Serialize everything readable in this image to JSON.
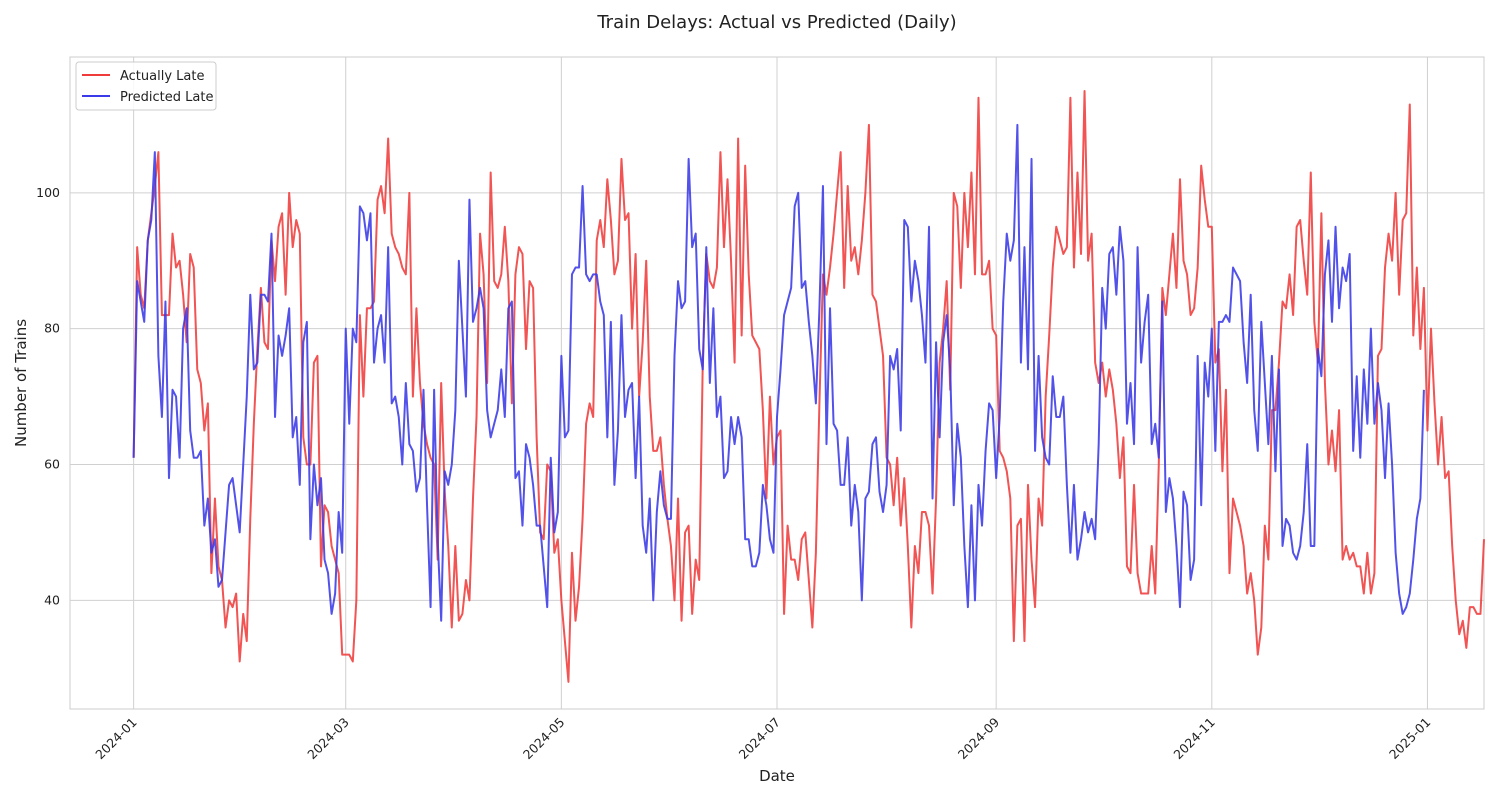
{
  "chart_data": {
    "type": "line",
    "title": "Train Delays: Actual vs Predicted (Daily)",
    "xlabel": "Date",
    "ylabel": "Number of Trains",
    "x_start": "2024-01-01",
    "x_end": "2024-12-31",
    "xlim": [
      "2023-12-14",
      "2025-01-17"
    ],
    "ylim": [
      24,
      120
    ],
    "x_ticks": [
      "2024-01",
      "2024-03",
      "2024-05",
      "2024-07",
      "2024-09",
      "2024-11",
      "2025-01"
    ],
    "y_ticks": [
      40,
      60,
      80,
      100
    ],
    "grid": true,
    "legend_position": "top-left",
    "series": [
      {
        "name": "Actually Late",
        "color": "#f03b3b",
        "values": [
          61,
          92,
          85,
          83,
          93,
          97,
          101,
          106,
          82,
          82,
          82,
          94,
          89,
          90,
          85,
          78,
          91,
          89,
          74,
          72,
          65,
          69,
          44,
          55,
          45,
          43,
          36,
          40,
          39,
          41,
          31,
          38,
          34,
          52,
          66,
          77,
          86,
          78,
          77,
          93,
          87,
          95,
          97,
          85,
          100,
          92,
          96,
          94,
          64,
          60,
          60,
          75,
          76,
          45,
          54,
          53,
          48,
          46,
          44,
          32,
          32,
          32,
          31,
          40,
          82,
          70,
          83,
          83,
          84,
          99,
          101,
          97,
          108,
          94,
          92,
          91,
          89,
          88,
          100,
          70,
          83,
          72,
          66,
          63,
          61,
          60,
          46,
          72,
          56,
          48,
          36,
          48,
          37,
          38,
          43,
          40,
          55,
          67,
          94,
          88,
          72,
          103,
          87,
          86,
          88,
          95,
          87,
          69,
          88,
          92,
          91,
          77,
          87,
          86,
          64,
          50,
          49,
          60,
          59,
          47,
          49,
          40,
          34,
          28,
          47,
          37,
          42,
          52,
          66,
          69,
          67,
          93,
          96,
          92,
          102,
          96,
          88,
          90,
          105,
          96,
          97,
          80,
          91,
          70,
          78,
          90,
          70,
          62,
          62,
          64,
          57,
          52,
          48,
          40,
          55,
          37,
          50,
          51,
          38,
          46,
          43,
          75,
          91,
          87,
          86,
          89,
          106,
          92,
          102,
          90,
          75,
          108,
          79,
          104,
          88,
          79,
          78,
          77,
          68,
          55,
          70,
          60,
          64,
          65,
          38,
          51,
          46,
          46,
          43,
          49,
          50,
          43,
          36,
          47,
          69,
          88,
          85,
          89,
          94,
          100,
          106,
          86,
          101,
          90,
          92,
          88,
          93,
          100,
          110,
          85,
          84,
          80,
          76,
          61,
          60,
          54,
          61,
          51,
          58,
          48,
          36,
          48,
          44,
          53,
          53,
          51,
          41,
          55,
          75,
          80,
          87,
          71,
          100,
          98,
          86,
          100,
          92,
          103,
          88,
          114,
          88,
          88,
          90,
          80,
          79,
          62,
          61,
          59,
          55,
          34,
          51,
          52,
          34,
          57,
          46,
          39,
          55,
          51,
          70,
          79,
          89,
          95,
          93,
          91,
          92,
          114,
          89,
          103,
          91,
          115,
          90,
          94,
          75,
          72,
          75,
          70,
          74,
          71,
          66,
          58,
          64,
          45,
          44,
          57,
          44,
          41,
          41,
          41,
          48,
          41,
          60,
          86,
          82,
          88,
          94,
          86,
          102,
          90,
          88,
          82,
          83,
          89,
          104,
          99,
          95,
          95,
          75,
          77,
          59,
          71,
          44,
          55,
          53,
          51,
          48,
          41,
          44,
          40,
          32,
          36,
          51,
          46,
          68,
          68,
          75,
          84,
          83,
          88,
          82,
          95,
          96,
          90,
          85,
          103,
          81,
          75,
          97,
          72,
          60,
          65,
          59,
          68,
          46,
          48,
          46,
          47,
          45,
          45,
          41,
          47,
          41,
          44,
          76,
          77,
          89,
          94,
          90,
          100,
          85,
          96,
          97,
          113,
          79,
          89,
          77,
          86,
          65,
          80,
          69,
          60,
          67,
          58,
          59,
          48,
          40,
          35,
          37,
          33,
          39,
          39,
          38,
          38,
          49
        ]
      },
      {
        "name": "Predicted Late",
        "color": "#3a3ae8",
        "values": [
          61,
          87,
          84,
          81,
          93,
          96,
          106,
          76,
          67,
          84,
          58,
          71,
          70,
          61,
          80,
          83,
          65,
          61,
          61,
          62,
          51,
          55,
          47,
          49,
          42,
          43,
          50,
          57,
          58,
          54,
          50,
          60,
          70,
          85,
          74,
          75,
          85,
          85,
          84,
          94,
          67,
          79,
          76,
          79,
          83,
          64,
          67,
          57,
          78,
          81,
          49,
          60,
          54,
          58,
          46,
          44,
          38,
          41,
          53,
          47,
          80,
          66,
          80,
          78,
          98,
          97,
          93,
          97,
          75,
          80,
          82,
          75,
          92,
          69,
          70,
          67,
          60,
          72,
          63,
          62,
          56,
          58,
          71,
          54,
          39,
          71,
          49,
          37,
          59,
          57,
          60,
          68,
          90,
          80,
          70,
          99,
          81,
          83,
          86,
          83,
          68,
          64,
          66,
          68,
          74,
          67,
          83,
          84,
          58,
          59,
          51,
          63,
          61,
          57,
          51,
          51,
          45,
          39,
          61,
          50,
          53,
          76,
          64,
          65,
          88,
          89,
          89,
          101,
          88,
          87,
          88,
          88,
          84,
          82,
          64,
          81,
          57,
          65,
          82,
          67,
          71,
          72,
          58,
          70,
          51,
          47,
          55,
          40,
          53,
          59,
          54,
          52,
          52,
          76,
          87,
          83,
          84,
          105,
          92,
          94,
          77,
          74,
          92,
          72,
          83,
          67,
          70,
          58,
          59,
          67,
          63,
          67,
          64,
          49,
          49,
          45,
          45,
          47,
          57,
          54,
          49,
          47,
          67,
          74,
          82,
          84,
          86,
          98,
          100,
          86,
          87,
          81,
          76,
          69,
          83,
          101,
          63,
          83,
          66,
          65,
          57,
          57,
          64,
          51,
          57,
          53,
          40,
          55,
          56,
          63,
          64,
          56,
          53,
          57,
          76,
          74,
          77,
          65,
          96,
          95,
          84,
          90,
          87,
          82,
          75,
          95,
          55,
          78,
          64,
          78,
          82,
          74,
          54,
          66,
          61,
          48,
          39,
          54,
          40,
          57,
          51,
          62,
          69,
          68,
          58,
          67,
          84,
          94,
          90,
          93,
          110,
          75,
          92,
          74,
          105,
          62,
          76,
          64,
          61,
          60,
          73,
          67,
          67,
          70,
          57,
          47,
          57,
          46,
          49,
          53,
          50,
          52,
          49,
          63,
          86,
          80,
          91,
          92,
          85,
          95,
          90,
          66,
          72,
          63,
          92,
          75,
          81,
          85,
          63,
          66,
          61,
          84,
          53,
          58,
          55,
          48,
          39,
          56,
          54,
          43,
          46,
          76,
          54,
          75,
          70,
          80,
          62,
          81,
          81,
          82,
          81,
          89,
          88,
          87,
          78,
          72,
          85,
          68,
          62,
          81,
          72,
          63,
          76,
          59,
          74,
          48,
          52,
          51,
          47,
          46,
          48,
          53,
          63,
          48,
          48,
          77,
          73,
          88,
          93,
          81,
          95,
          83,
          89,
          87,
          91,
          62,
          73,
          61,
          74,
          66,
          80,
          66,
          72,
          68,
          58,
          69,
          60,
          47,
          41,
          38,
          39,
          41,
          46,
          52,
          55,
          71
        ]
      }
    ]
  }
}
